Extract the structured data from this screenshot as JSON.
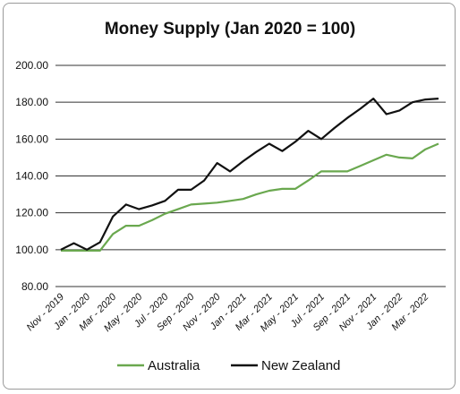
{
  "chart_data": {
    "type": "line",
    "title": "Money Supply (Jan 2020 = 100)",
    "xlabel": "",
    "ylabel": "",
    "ylim": [
      80,
      200
    ],
    "yticks": [
      80,
      100,
      120,
      140,
      160,
      180,
      200
    ],
    "ytick_labels": [
      "80.00",
      "100.00",
      "120.00",
      "140.00",
      "160.00",
      "180.00",
      "200.00"
    ],
    "x": [
      "Nov - 2019",
      "Dec - 2019",
      "Jan - 2020",
      "Feb - 2020",
      "Mar - 2020",
      "Apr - 2020",
      "May - 2020",
      "Jun - 2020",
      "Jul - 2020",
      "Aug - 2020",
      "Sep - 2020",
      "Oct - 2020",
      "Nov - 2020",
      "Dec - 2020",
      "Jan - 2021",
      "Feb - 2021",
      "Mar - 2021",
      "Apr - 2021",
      "May - 2021",
      "Jun - 2021",
      "Jul - 2021",
      "Aug - 2021",
      "Sep - 2021",
      "Oct - 2021",
      "Nov - 2021",
      "Dec - 2021",
      "Jan - 2022",
      "Feb - 2022",
      "Mar - 2022",
      "Apr - 2022"
    ],
    "xtick_labels": [
      "Nov - 2019",
      "Jan - 2020",
      "Mar - 2020",
      "May - 2020",
      "Jul - 2020",
      "Sep - 2020",
      "Nov - 2020",
      "Jan - 2021",
      "Mar - 2021",
      "May - 2021",
      "Jul - 2021",
      "Sep - 2021",
      "Nov - 2021",
      "Jan - 2022",
      "Mar - 2022"
    ],
    "grid": "horizontal",
    "legend": "bottom",
    "series": [
      {
        "name": "Australia",
        "color": "#6aa84f",
        "values": [
          99.5,
          99.5,
          99.5,
          99.5,
          108.5,
          113,
          113,
          116,
          119.5,
          122,
          124.5,
          125,
          125.5,
          126.5,
          127.5,
          130,
          132,
          133,
          133,
          137.5,
          142.5,
          142.5,
          142.5,
          145.5,
          148.5,
          151.5,
          150,
          149.5,
          154.5,
          157.5
        ]
      },
      {
        "name": "New Zealand",
        "color": "#111111",
        "values": [
          100,
          103.5,
          100,
          104,
          118,
          124.5,
          122,
          124,
          126.5,
          132.5,
          132.5,
          137.5,
          147,
          142.5,
          148,
          153,
          157.5,
          153.5,
          158.5,
          164.5,
          160,
          166,
          171.5,
          176.5,
          182,
          173.5,
          175.5,
          180,
          181.5,
          182
        ]
      }
    ]
  }
}
